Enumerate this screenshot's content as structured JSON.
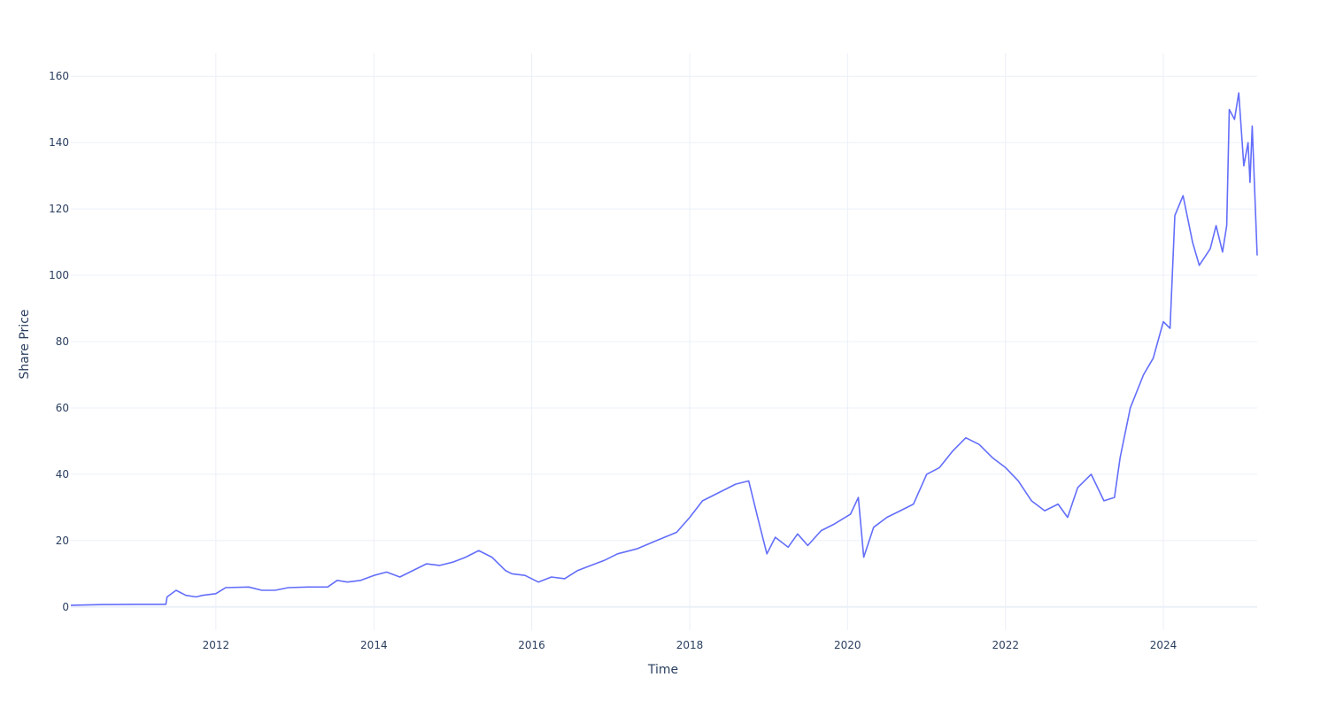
{
  "chart_data": {
    "type": "line",
    "xlabel": "Time",
    "ylabel": "Share Price",
    "xlim": [
      "2010-03-01",
      "2025-03-10"
    ],
    "ylim": [
      -7,
      167
    ],
    "x_ticks": [
      "2012",
      "2014",
      "2016",
      "2018",
      "2020",
      "2022",
      "2024"
    ],
    "y_ticks": [
      0,
      20,
      40,
      60,
      80,
      100,
      120,
      140,
      160
    ],
    "grid": true,
    "legend": "none",
    "colors": {
      "line": "#636efa",
      "grid": "#ebf0f8",
      "text": "#2a3f5f"
    },
    "series": [
      {
        "x": [
          "2010-03-01",
          "2010-08-01",
          "2011-01-01",
          "2011-05-15",
          "2011-05-20",
          "2011-07-01",
          "2011-08-15",
          "2011-10-01",
          "2011-11-01",
          "2012-01-01",
          "2012-02-15",
          "2012-06-01",
          "2012-08-01",
          "2012-10-01",
          "2012-12-01",
          "2013-03-01",
          "2013-06-01",
          "2013-07-15",
          "2013-09-01",
          "2013-11-01",
          "2014-01-01",
          "2014-03-01",
          "2014-05-01",
          "2014-07-01",
          "2014-09-01",
          "2014-11-01",
          "2015-01-01",
          "2015-03-01",
          "2015-05-01",
          "2015-07-01",
          "2015-09-01",
          "2015-10-01",
          "2015-12-01",
          "2016-02-01",
          "2016-04-01",
          "2016-06-01",
          "2016-08-01",
          "2016-10-01",
          "2016-12-01",
          "2017-02-01",
          "2017-05-01",
          "2017-08-01",
          "2017-11-01",
          "2018-01-01",
          "2018-03-01",
          "2018-06-01",
          "2018-08-01",
          "2018-10-01",
          "2018-11-15",
          "2018-12-24",
          "2019-02-01",
          "2019-04-01",
          "2019-05-15",
          "2019-07-01",
          "2019-09-01",
          "2019-11-01",
          "2020-01-15",
          "2020-02-20",
          "2020-03-16",
          "2020-05-01",
          "2020-07-01",
          "2020-09-01",
          "2020-11-01",
          "2021-01-01",
          "2021-03-01",
          "2021-05-01",
          "2021-07-01",
          "2021-09-01",
          "2021-11-01",
          "2022-01-01",
          "2022-03-01",
          "2022-05-01",
          "2022-07-01",
          "2022-09-01",
          "2022-10-15",
          "2022-12-01",
          "2023-02-01",
          "2023-04-01",
          "2023-05-20",
          "2023-06-15",
          "2023-08-01",
          "2023-10-01",
          "2023-11-15",
          "2024-01-01",
          "2024-02-01",
          "2024-02-23",
          "2024-04-01",
          "2024-05-15",
          "2024-06-15",
          "2024-08-05",
          "2024-09-01",
          "2024-10-01",
          "2024-10-20",
          "2024-11-01",
          "2024-11-25",
          "2024-12-15",
          "2025-01-07",
          "2025-01-27",
          "2025-02-05",
          "2025-02-15",
          "2025-03-10"
        ],
        "y": [
          0.5,
          0.7,
          0.8,
          0.8,
          3.0,
          5.0,
          3.5,
          3.0,
          3.5,
          4.0,
          5.8,
          6.0,
          5.0,
          5.0,
          5.8,
          6.0,
          6.0,
          8.0,
          7.5,
          8.0,
          9.5,
          10.5,
          9.0,
          11.0,
          13.0,
          12.5,
          13.5,
          15.0,
          17.0,
          15.0,
          11.0,
          10.0,
          9.5,
          7.5,
          9.0,
          8.5,
          11.0,
          12.5,
          14.0,
          16.0,
          17.5,
          20.0,
          22.5,
          27.0,
          32.0,
          35.0,
          37.0,
          38.0,
          26.0,
          16.0,
          21.0,
          18.0,
          22.0,
          18.5,
          23.0,
          25.0,
          28.0,
          33.0,
          15.0,
          24.0,
          27.0,
          29.0,
          31.0,
          40.0,
          42.0,
          47.0,
          51.0,
          49.0,
          45.0,
          42.0,
          38.0,
          32.0,
          29.0,
          31.0,
          27.0,
          36.0,
          40.0,
          32.0,
          33.0,
          45.0,
          60.0,
          70.0,
          75.0,
          86.0,
          84.0,
          118.0,
          124.0,
          110.0,
          103.0,
          108.0,
          115.0,
          107.0,
          115.0,
          150.0,
          147.0,
          155.0,
          133.0,
          140.0,
          128.0,
          145.0,
          106.0
        ]
      }
    ]
  }
}
